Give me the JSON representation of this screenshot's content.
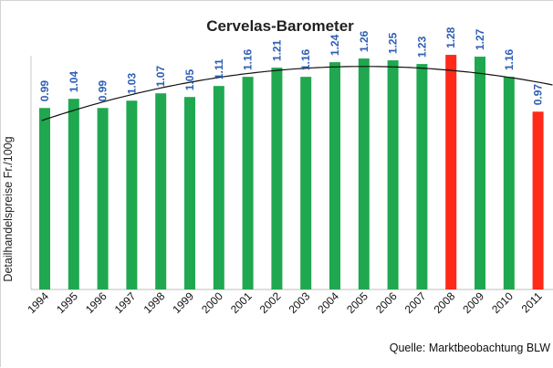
{
  "chart_data": {
    "type": "bar",
    "title": "Cervelas-Barometer",
    "ylabel": "Detailhandelspreise  Fr./100g",
    "xlabel": "",
    "source": "Quelle: Marktbeobachtung BLW",
    "categories": [
      "1994",
      "1995",
      "1996",
      "1997",
      "1998",
      "1999",
      "2000",
      "2001",
      "2002",
      "2003",
      "2004",
      "2005",
      "2006",
      "2007",
      "2008",
      "2009",
      "2010",
      "2011"
    ],
    "values": [
      0.99,
      1.04,
      0.99,
      1.03,
      1.07,
      1.05,
      1.11,
      1.16,
      1.21,
      1.16,
      1.24,
      1.26,
      1.25,
      1.23,
      1.28,
      1.27,
      1.16,
      0.97
    ],
    "data_labels": [
      "0.99",
      "1.04",
      "0.99",
      "1.03",
      "1.07",
      "1.05",
      "1.11",
      "1.16",
      "1.21",
      "1.16",
      "1.24",
      "1.26",
      "1.25",
      "1.23",
      "1.28",
      "1.27",
      "1.16",
      "0.97"
    ],
    "bar_colors": [
      "#1fa84f",
      "#1fa84f",
      "#1fa84f",
      "#1fa84f",
      "#1fa84f",
      "#1fa84f",
      "#1fa84f",
      "#1fa84f",
      "#1fa84f",
      "#1fa84f",
      "#1fa84f",
      "#1fa84f",
      "#1fa84f",
      "#1fa84f",
      "#ff2a1a",
      "#1fa84f",
      "#1fa84f",
      "#ff2a1a"
    ],
    "trendline": "polynomial",
    "ylim": [
      0,
      1.35
    ],
    "grid": false,
    "legend": "none",
    "colors": {
      "bar": "#1fa84f",
      "highlight": "#ff2a1a",
      "label": "#2e5fb4",
      "trend": "#111111"
    }
  }
}
